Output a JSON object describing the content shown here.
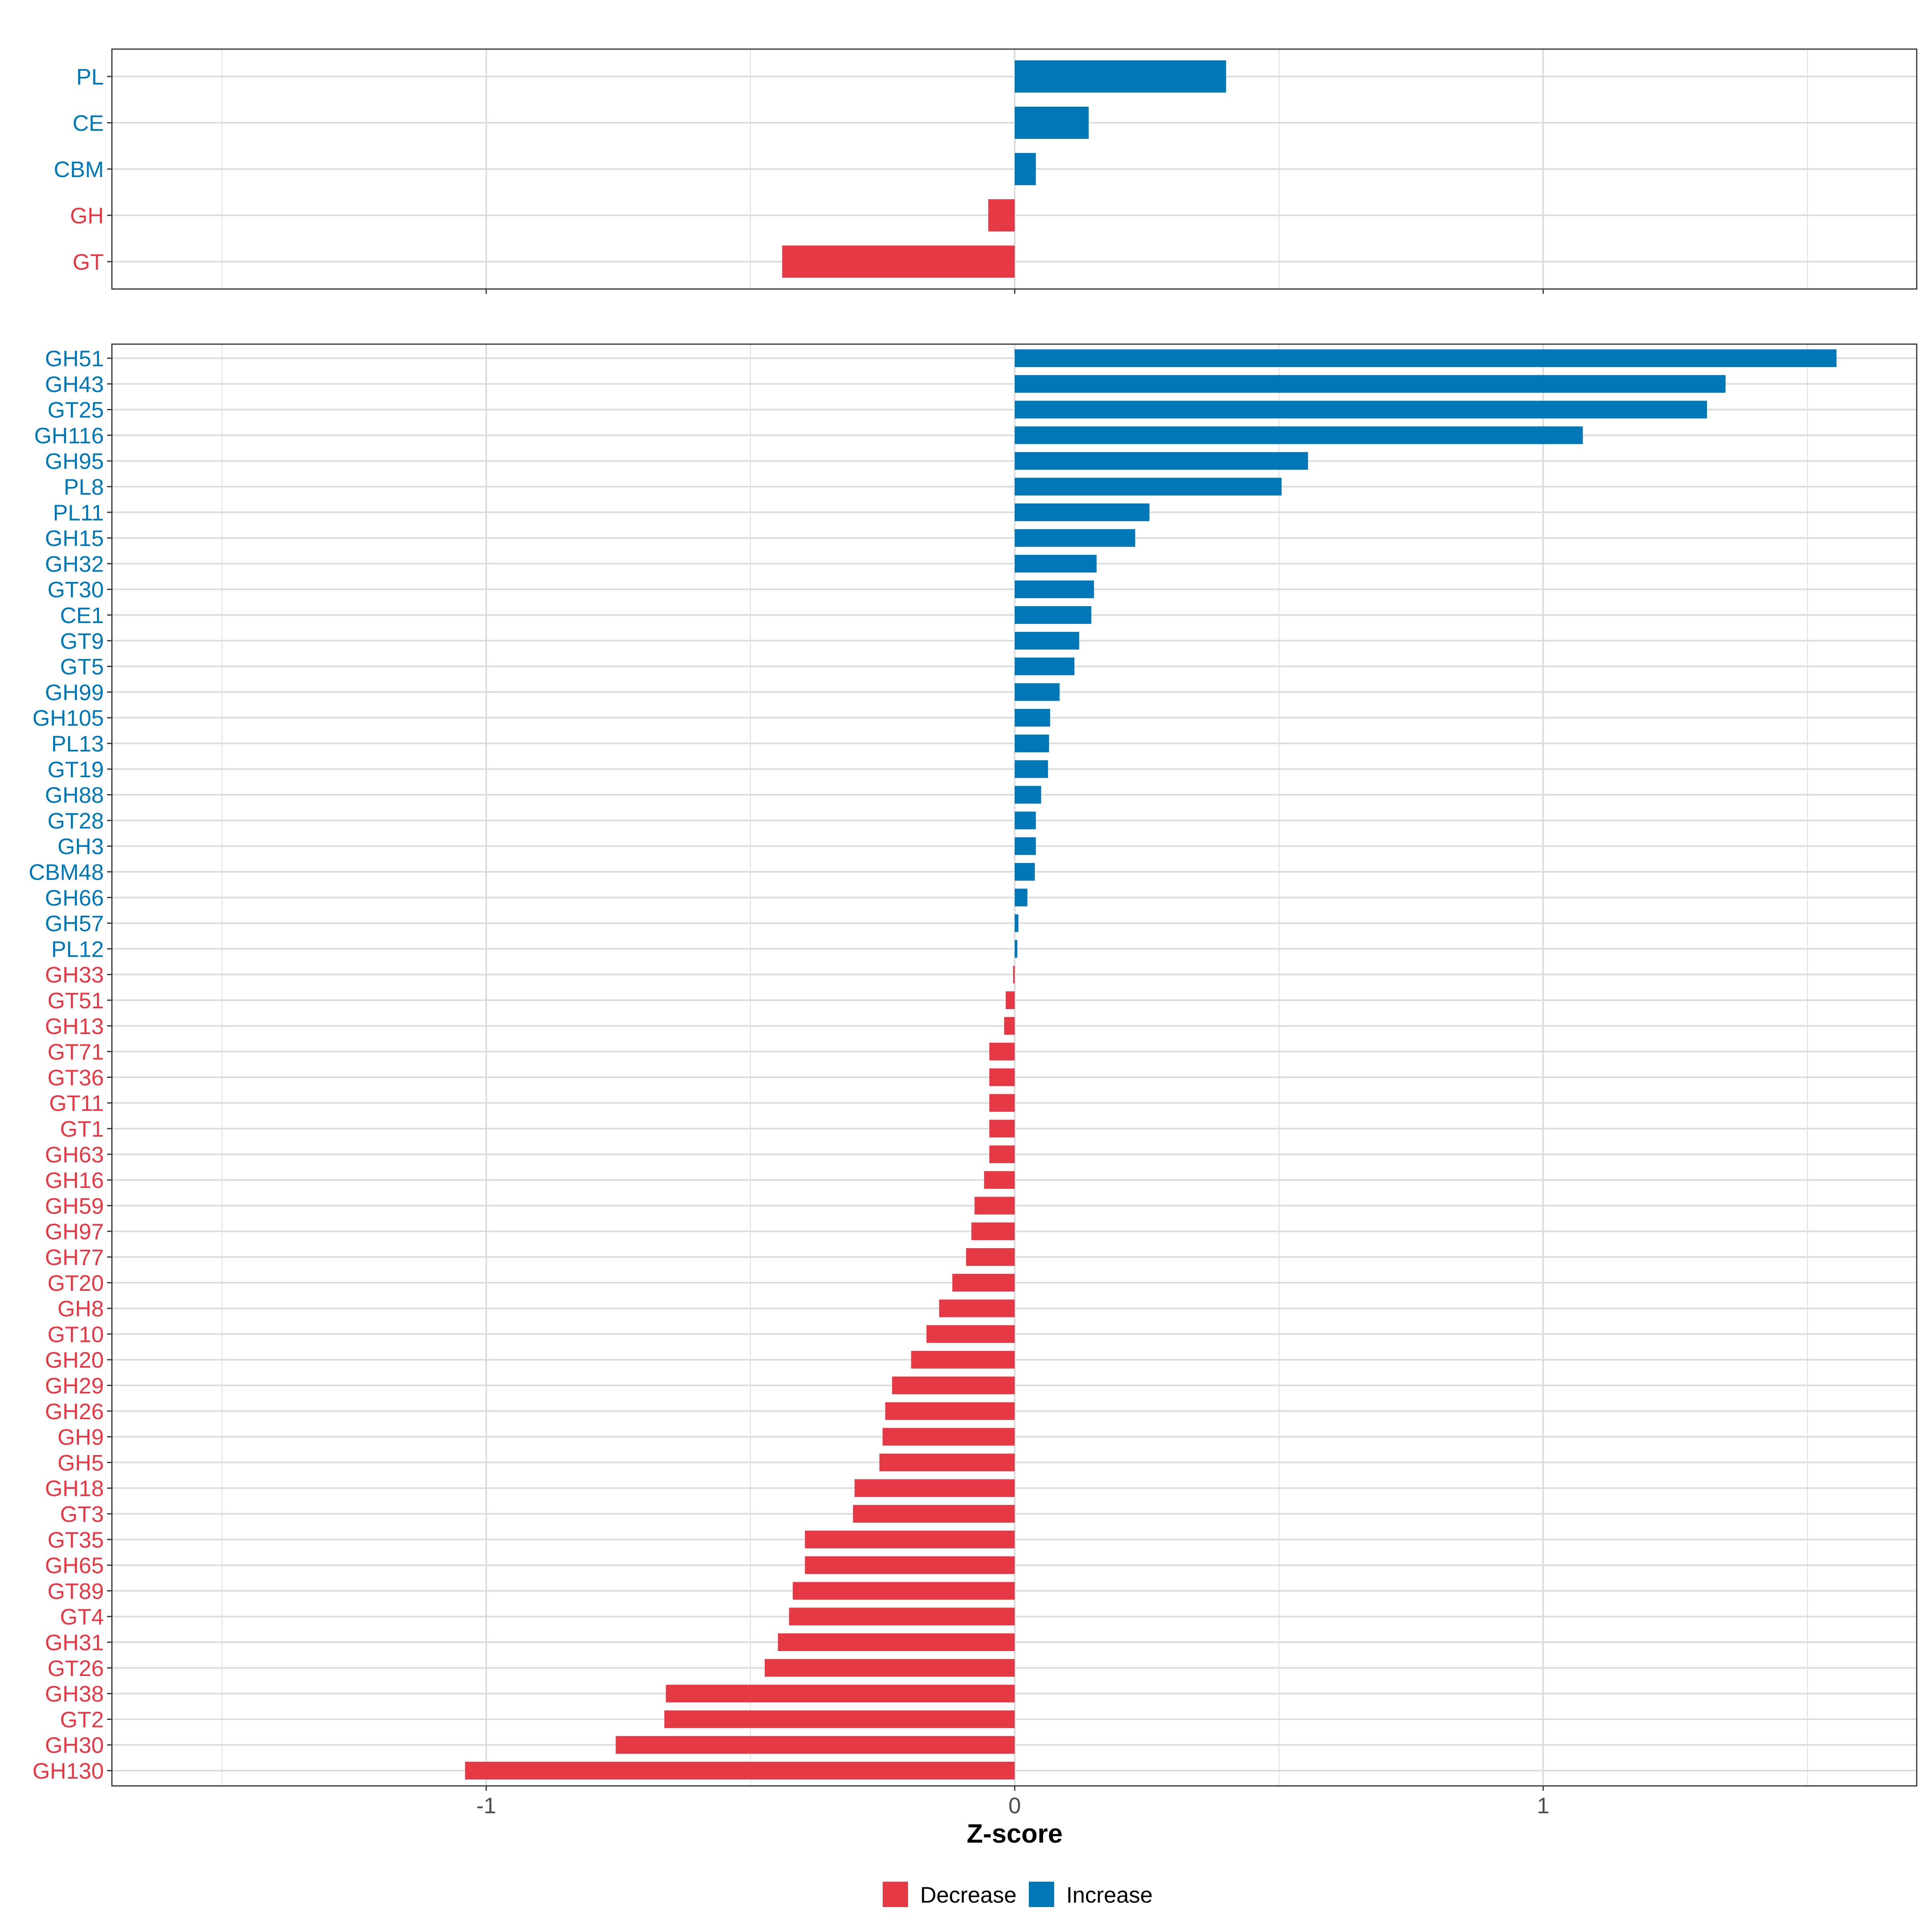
{
  "chart_data": [
    {
      "type": "bar",
      "orientation": "horizontal",
      "panel": "top",
      "categories": [
        "PL",
        "CE",
        "CBM",
        "GH",
        "GT"
      ],
      "values": [
        0.4,
        0.14,
        0.04,
        -0.05,
        -0.44
      ],
      "xlim": [
        -1.71,
        1.71
      ],
      "xticks": [
        -1,
        0,
        1
      ],
      "grid": true
    },
    {
      "type": "bar",
      "orientation": "horizontal",
      "panel": "bottom",
      "categories": [
        "GH51",
        "GH43",
        "GT25",
        "GH116",
        "GH95",
        "PL8",
        "PL11",
        "GH15",
        "GH32",
        "GT30",
        "CE1",
        "GT9",
        "GT5",
        "GH99",
        "GH105",
        "PL13",
        "GT19",
        "GH88",
        "GT28",
        "GH3",
        "CBM48",
        "GH66",
        "GH57",
        "PL12",
        "GH33",
        "GT51",
        "GH13",
        "GT71",
        "GT36",
        "GT11",
        "GT1",
        "GH63",
        "GH16",
        "GH59",
        "GH97",
        "GH77",
        "GT20",
        "GH8",
        "GT10",
        "GH20",
        "GH29",
        "GH26",
        "GH9",
        "GH5",
        "GH18",
        "GT3",
        "GT35",
        "GH65",
        "GT89",
        "GT4",
        "GH31",
        "GT26",
        "GH38",
        "GT2",
        "GH30",
        "GH130"
      ],
      "values": [
        1.555,
        1.345,
        1.31,
        1.075,
        0.555,
        0.505,
        0.255,
        0.228,
        0.155,
        0.15,
        0.145,
        0.122,
        0.113,
        0.085,
        0.067,
        0.065,
        0.063,
        0.05,
        0.04,
        0.04,
        0.038,
        0.024,
        0.007,
        0.005,
        -0.003,
        -0.017,
        -0.02,
        -0.048,
        -0.048,
        -0.048,
        -0.048,
        -0.048,
        -0.058,
        -0.076,
        -0.082,
        -0.092,
        -0.118,
        -0.143,
        -0.167,
        -0.196,
        -0.232,
        -0.245,
        -0.25,
        -0.256,
        -0.303,
        -0.306,
        -0.397,
        -0.397,
        -0.42,
        -0.427,
        -0.448,
        -0.473,
        -0.66,
        -0.663,
        -0.755,
        -1.04
      ],
      "xlim": [
        -1.71,
        1.71
      ],
      "xticks": [
        -1,
        0,
        1
      ],
      "xlabel": "Z-score",
      "grid": true
    }
  ],
  "axis": {
    "xtick_labels": [
      "-1",
      "0",
      "1"
    ],
    "xlabel": "Z-score"
  },
  "legend": {
    "position": "bottom",
    "items": [
      {
        "label": "Decrease",
        "color": "#E63946"
      },
      {
        "label": "Increase",
        "color": "#0077B6"
      }
    ]
  },
  "colors": {
    "decrease": "#E63946",
    "increase": "#0077B6",
    "grid": "#DCDCDC",
    "panel_border": "#333333",
    "tick_text": "#4d4d4d"
  }
}
